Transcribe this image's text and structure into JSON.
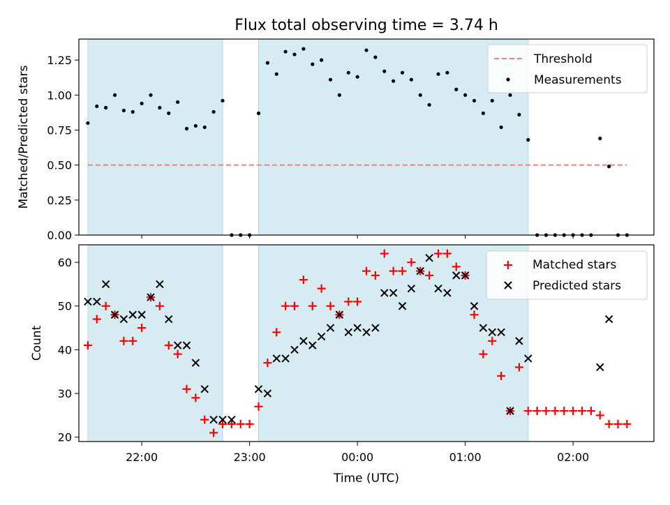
{
  "title": "Flux total observing time = 3.74 h",
  "chart_data": [
    {
      "type": "scatter",
      "title": "Flux total observing time = 3.74 h",
      "xlabel": "",
      "ylabel": "Matched/Predicted stars",
      "ylim": [
        0,
        1.4
      ],
      "xlim": [
        "21:25",
        "02:45"
      ],
      "yticks": [
        "0.00",
        "0.25",
        "0.50",
        "0.75",
        "1.00",
        "1.25"
      ],
      "grid": false,
      "legend_position": "top-right",
      "shaded_intervals": [
        [
          "21:30",
          "22:45"
        ],
        [
          "23:05",
          "01:35"
        ]
      ],
      "threshold": {
        "name": "Threshold",
        "value": 0.5,
        "x_range": [
          "21:30",
          "02:30"
        ],
        "color": "#f08080"
      },
      "series": [
        {
          "name": "Measurements",
          "color": "#000000",
          "x": [
            "21:30",
            "21:35",
            "21:40",
            "21:45",
            "21:50",
            "21:55",
            "22:00",
            "22:05",
            "22:10",
            "22:15",
            "22:20",
            "22:25",
            "22:30",
            "22:35",
            "22:40",
            "22:45",
            "22:50",
            "22:55",
            "23:00",
            "23:05",
            "23:10",
            "23:15",
            "23:20",
            "23:25",
            "23:30",
            "23:35",
            "23:40",
            "23:45",
            "23:50",
            "23:55",
            "00:00",
            "00:05",
            "00:10",
            "00:15",
            "00:20",
            "00:25",
            "00:30",
            "00:35",
            "00:40",
            "00:45",
            "00:50",
            "00:55",
            "01:00",
            "01:05",
            "01:10",
            "01:15",
            "01:20",
            "01:25",
            "01:30",
            "01:35",
            "01:40",
            "01:45",
            "01:50",
            "01:55",
            "02:00",
            "02:05",
            "02:10",
            "02:15",
            "02:20",
            "02:25",
            "02:30"
          ],
          "y": [
            0.8,
            0.92,
            0.91,
            1.0,
            0.89,
            0.88,
            0.94,
            1.0,
            0.91,
            0.87,
            0.95,
            0.76,
            0.78,
            0.77,
            0.88,
            0.96,
            0.0,
            0.0,
            0.0,
            0.87,
            1.23,
            1.15,
            1.31,
            1.29,
            1.33,
            1.22,
            1.25,
            1.11,
            1.0,
            1.16,
            1.13,
            1.32,
            1.27,
            1.17,
            1.1,
            1.16,
            1.11,
            1.0,
            0.93,
            1.15,
            1.16,
            1.04,
            1.0,
            0.96,
            0.87,
            0.96,
            0.77,
            1.0,
            0.86,
            0.68,
            0.0,
            0.0,
            0.0,
            0.0,
            0.0,
            0.0,
            0.0,
            0.69,
            0.49,
            0.0,
            0.0
          ]
        }
      ]
    },
    {
      "type": "scatter",
      "title": "",
      "xlabel": "Time (UTC)",
      "ylabel": "Count",
      "ylim": [
        19,
        64
      ],
      "xlim": [
        "21:25",
        "02:45"
      ],
      "yticks": [
        "20",
        "30",
        "40",
        "50",
        "60"
      ],
      "xticks": [
        "22:00",
        "23:00",
        "00:00",
        "01:00",
        "02:00"
      ],
      "grid": false,
      "legend_position": "top-right",
      "shaded_intervals": [
        [
          "21:30",
          "22:45"
        ],
        [
          "23:05",
          "01:35"
        ]
      ],
      "series": [
        {
          "name": "Matched stars",
          "marker": "plus",
          "color": "#ff0000",
          "x": [
            "21:30",
            "21:35",
            "21:40",
            "21:45",
            "21:50",
            "21:55",
            "22:00",
            "22:05",
            "22:10",
            "22:15",
            "22:20",
            "22:25",
            "22:30",
            "22:35",
            "22:40",
            "22:45",
            "22:50",
            "22:55",
            "23:00",
            "23:05",
            "23:10",
            "23:15",
            "23:20",
            "23:25",
            "23:30",
            "23:35",
            "23:40",
            "23:45",
            "23:50",
            "23:55",
            "00:00",
            "00:05",
            "00:10",
            "00:15",
            "00:20",
            "00:25",
            "00:30",
            "00:35",
            "00:40",
            "00:45",
            "00:50",
            "00:55",
            "01:00",
            "01:05",
            "01:10",
            "01:15",
            "01:20",
            "01:25",
            "01:30",
            "01:35",
            "01:40",
            "01:45",
            "01:50",
            "01:55",
            "02:00",
            "02:05",
            "02:10",
            "02:15",
            "02:20",
            "02:25",
            "02:30"
          ],
          "y": [
            41,
            47,
            50,
            48,
            42,
            42,
            45,
            52,
            50,
            41,
            39,
            31,
            29,
            24,
            21,
            23,
            23,
            23,
            23,
            27,
            37,
            44,
            50,
            50,
            56,
            50,
            54,
            50,
            48,
            51,
            51,
            58,
            57,
            62,
            58,
            58,
            60,
            58,
            57,
            62,
            62,
            59,
            57,
            48,
            39,
            42,
            34,
            26,
            36,
            26,
            26,
            26,
            26,
            26,
            26,
            26,
            26,
            25,
            23,
            23,
            23
          ]
        },
        {
          "name": "Predicted stars",
          "marker": "x",
          "color": "#000000",
          "x": [
            "21:30",
            "21:35",
            "21:40",
            "21:45",
            "21:50",
            "21:55",
            "22:00",
            "22:05",
            "22:10",
            "22:15",
            "22:20",
            "22:25",
            "22:30",
            "22:35",
            "22:40",
            "22:45",
            "22:50",
            "23:05",
            "23:10",
            "23:15",
            "23:20",
            "23:25",
            "23:30",
            "23:35",
            "23:40",
            "23:45",
            "23:50",
            "23:55",
            "00:00",
            "00:05",
            "00:10",
            "00:15",
            "00:20",
            "00:25",
            "00:30",
            "00:35",
            "00:40",
            "00:45",
            "00:50",
            "00:55",
            "01:00",
            "01:05",
            "01:10",
            "01:15",
            "01:20",
            "01:25",
            "01:30",
            "01:35",
            "01:40",
            "02:15",
            "02:20"
          ],
          "y": [
            51,
            51,
            55,
            48,
            47,
            48,
            48,
            52,
            55,
            47,
            41,
            41,
            37,
            31,
            24,
            24,
            24,
            31,
            30,
            38,
            38,
            40,
            42,
            41,
            43,
            45,
            48,
            44,
            45,
            44,
            45,
            53,
            53,
            50,
            54,
            58,
            61,
            54,
            53,
            57,
            57,
            50,
            45,
            44,
            44,
            26,
            42,
            38,
            null,
            36,
            47
          ]
        }
      ]
    }
  ]
}
